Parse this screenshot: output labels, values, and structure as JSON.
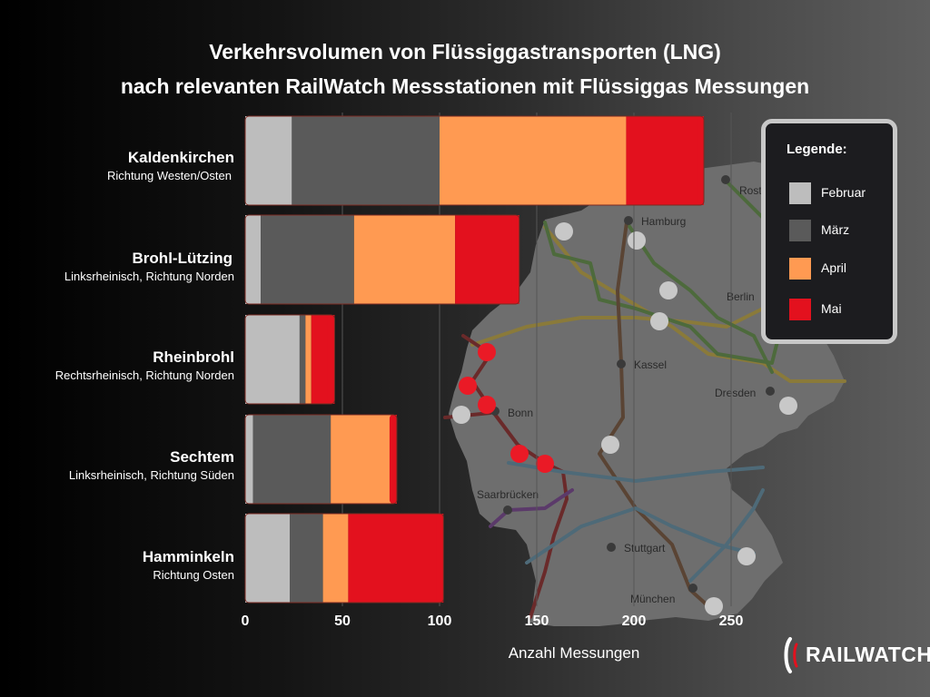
{
  "title_line1": "Verkehrsvolumen von Flüssiggastransporten (LNG)",
  "title_line2": "nach relevanten RailWatch Messstationen mit Flüssiggas Messungen",
  "chart_data": {
    "type": "bar",
    "orientation": "horizontal",
    "stacked": true,
    "categories": [
      {
        "name": "Kaldenkirchen",
        "sub": "Richtung Westen/Osten"
      },
      {
        "name": "Brohl-Lützing",
        "sub": "Linksrheinisch, Richtung Norden"
      },
      {
        "name": "Rheinbrohl",
        "sub": "Rechtsrheinisch, Richtung Norden"
      },
      {
        "name": "Sechtem",
        "sub": "Linksrheinisch, Richtung Süden"
      },
      {
        "name": "Hamminkeln",
        "sub": "Richtung Osten"
      }
    ],
    "series": [
      {
        "name": "Februar",
        "color": "#bdbdbd",
        "values": [
          24,
          8,
          28,
          4,
          23
        ]
      },
      {
        "name": "März",
        "color": "#5a5a5a",
        "values": [
          76,
          48,
          3,
          40,
          17
        ]
      },
      {
        "name": "April",
        "color": "#ff9a52",
        "values": [
          96,
          52,
          3,
          31,
          13
        ]
      },
      {
        "name": "Mai",
        "color": "#e3111e",
        "values": [
          40,
          33,
          12,
          3,
          49
        ]
      }
    ],
    "xlabel": "Anzahl Messungen",
    "xlim": [
      0,
      250
    ],
    "xticks": [
      0,
      50,
      100,
      150,
      200,
      250
    ],
    "grid": true,
    "legend_title": "Legende:",
    "legend_position": "top-right"
  },
  "map": {
    "cities": [
      "Rostock",
      "Hamburg",
      "Berlin",
      "Kassel",
      "Bonn",
      "Dresden",
      "Saarbrücken",
      "Stuttgart",
      "München"
    ],
    "station_colors": {
      "gray": "#c8c8c8",
      "red": "#ea1a26"
    }
  },
  "logo": {
    "text": "RAILWATCH"
  }
}
